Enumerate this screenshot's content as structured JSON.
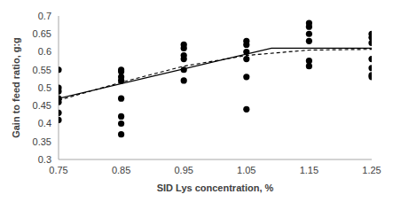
{
  "chart_data": {
    "type": "scatter",
    "x_label": "SID Lys concentration, %",
    "y_label": "Gain to feed ratio, g:g",
    "xlim": [
      0.75,
      1.25
    ],
    "xticks": [
      0.75,
      0.85,
      0.95,
      1.05,
      1.15,
      1.25
    ],
    "ylim": [
      0.3,
      0.7
    ],
    "yticks": [
      0.3,
      0.35,
      0.4,
      0.45,
      0.5,
      0.55,
      0.6,
      0.65,
      0.7
    ],
    "grid": false,
    "series": [
      {
        "type": "scatter",
        "marker": "circle",
        "color": "#000000",
        "x": [
          0.75,
          0.75,
          0.75,
          0.75,
          0.75,
          0.75,
          0.75,
          0.85,
          0.85,
          0.85,
          0.85,
          0.85,
          0.85,
          0.85,
          0.85,
          0.95,
          0.95,
          0.95,
          0.95,
          0.95,
          0.95,
          1.05,
          1.05,
          1.05,
          1.05,
          1.05,
          1.05,
          1.15,
          1.15,
          1.15,
          1.15,
          1.15,
          1.15,
          1.25,
          1.25,
          1.25,
          1.25,
          1.25,
          1.25,
          1.25
        ],
        "values": [
          0.55,
          0.5,
          0.49,
          0.47,
          0.46,
          0.43,
          0.41,
          0.55,
          0.545,
          0.53,
          0.52,
          0.47,
          0.42,
          0.4,
          0.37,
          0.62,
          0.61,
          0.59,
          0.58,
          0.55,
          0.52,
          0.63,
          0.62,
          0.6,
          0.58,
          0.53,
          0.44,
          0.68,
          0.67,
          0.65,
          0.63,
          0.575,
          0.56,
          0.65,
          0.64,
          0.625,
          0.58,
          0.555,
          0.535,
          0.53
        ]
      },
      {
        "type": "line",
        "line_style": "solid",
        "color": "#000000",
        "x": [
          0.75,
          1.09,
          1.25
        ],
        "values": [
          0.47,
          0.61,
          0.61
        ]
      },
      {
        "type": "line",
        "line_style": "dashed",
        "color": "#000000",
        "x": [
          0.75,
          0.85,
          0.95,
          1.05,
          1.15,
          1.25
        ],
        "values": [
          0.465,
          0.515,
          0.56,
          0.59,
          0.605,
          0.607
        ]
      }
    ]
  }
}
